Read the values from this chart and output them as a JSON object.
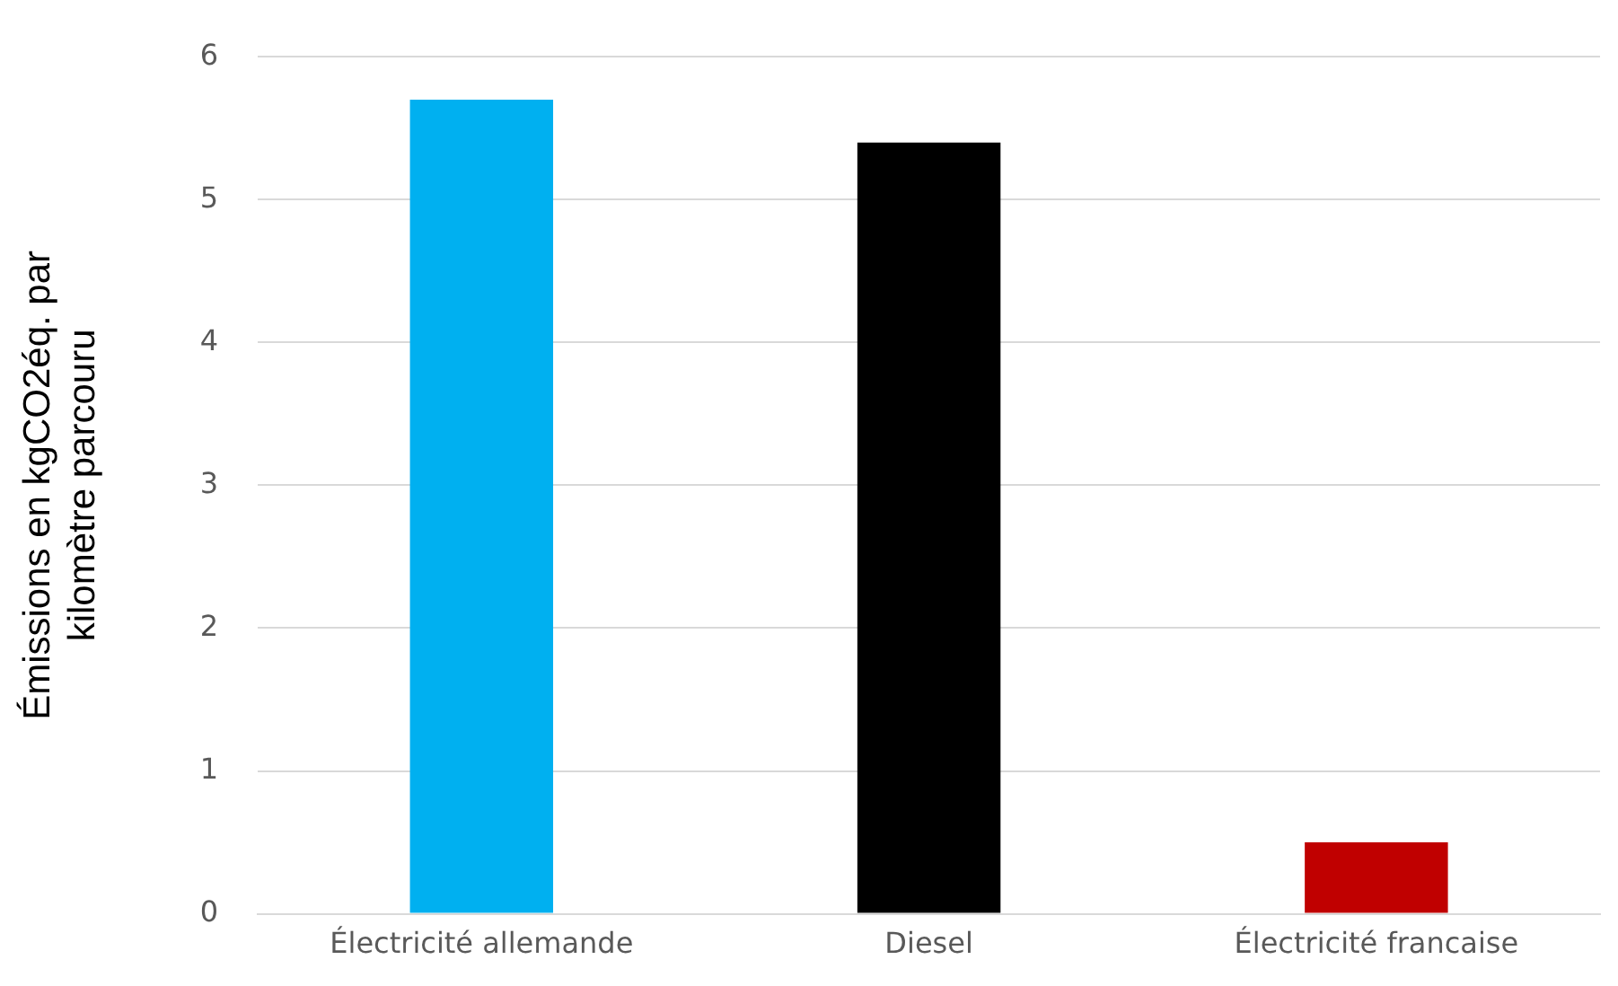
{
  "chart_data": {
    "type": "bar",
    "ylabel": "Émissions en kgCO2éq. par kilomètre parcouru",
    "categories": [
      "Électricité allemande",
      "Diesel",
      "Électricité francaise"
    ],
    "values": [
      5.7,
      5.4,
      0.5
    ],
    "colors": [
      "#00b0f0",
      "#000000",
      "#c00000"
    ],
    "ylim": [
      0,
      6
    ],
    "yticks": [
      0,
      1,
      2,
      3,
      4,
      5,
      6
    ],
    "grid": "y",
    "legend": false
  }
}
